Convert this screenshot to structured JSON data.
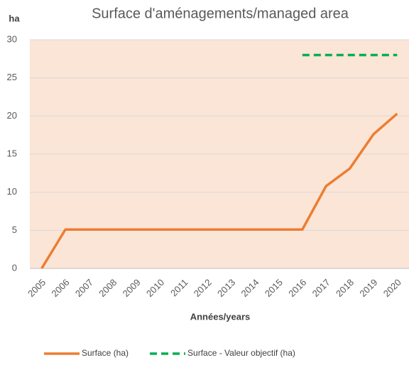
{
  "chart_data": {
    "type": "line",
    "title": "Surface d'aménagements/managed area",
    "y_label": "ha",
    "x_label": "Années/years",
    "categories": [
      "2005",
      "2006",
      "2007",
      "2008",
      "2009",
      "2010",
      "2011",
      "2012",
      "2013",
      "2014",
      "2015",
      "2016",
      "2017",
      "2018",
      "2019",
      "2020"
    ],
    "series": [
      {
        "name": "Surface (ha)",
        "color": "#ed7d31",
        "dashed": false,
        "values": [
          0,
          5.1,
          5.1,
          5.1,
          5.1,
          5.1,
          5.1,
          5.1,
          5.1,
          5.1,
          5.1,
          5.1,
          10.8,
          13.1,
          17.6,
          20.3
        ]
      },
      {
        "name": "Surface - Valeur objectif (ha)",
        "color": "#00b050",
        "dashed": true,
        "values": [
          null,
          null,
          null,
          null,
          null,
          null,
          null,
          null,
          null,
          null,
          null,
          28,
          28,
          28,
          28,
          28
        ]
      }
    ],
    "ylim": [
      0,
      30
    ],
    "yticks": [
      0,
      5,
      10,
      15,
      20,
      25,
      30
    ],
    "grid": true,
    "legend": "bottom",
    "plot_background": "#fbe5d6"
  }
}
